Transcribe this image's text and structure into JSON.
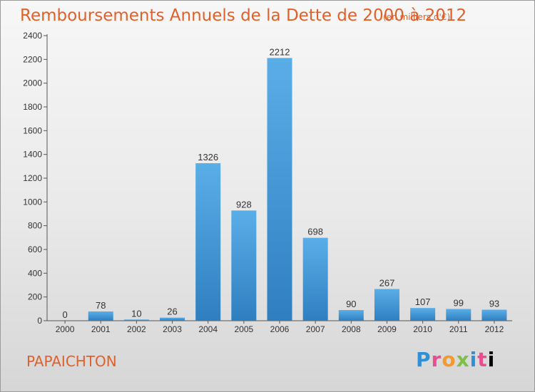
{
  "header": {
    "title": "Remboursements Annuels de la Dette de 2000 à 2012",
    "unit_note": "(en milliers d'€)"
  },
  "footer": {
    "town": "PAPAICHTON",
    "brand": [
      "P",
      "r",
      "o",
      "x",
      "i",
      "t",
      "i"
    ]
  },
  "colors": {
    "title": "#e0602a",
    "bar_top": "#5aaee8",
    "bar_bottom": "#2f7fc0"
  },
  "chart_data": {
    "type": "bar",
    "title": "Remboursements Annuels de la Dette de 2000 à 2012",
    "xlabel": "",
    "ylabel": "",
    "categories": [
      "2000",
      "2001",
      "2002",
      "2003",
      "2004",
      "2005",
      "2006",
      "2007",
      "2008",
      "2009",
      "2010",
      "2011",
      "2012"
    ],
    "values": [
      0,
      78,
      10,
      26,
      1326,
      928,
      2212,
      698,
      90,
      267,
      107,
      99,
      93
    ],
    "ylim": [
      0,
      2400
    ],
    "yticks": [
      0,
      200,
      400,
      600,
      800,
      1000,
      1200,
      1400,
      1600,
      1800,
      2000,
      2200,
      2400
    ],
    "grid": false,
    "legend": "none"
  }
}
